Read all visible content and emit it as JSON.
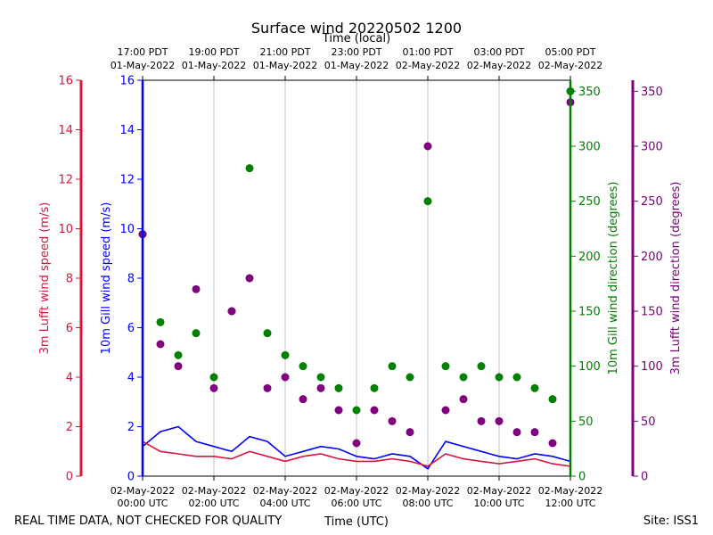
{
  "chart_data": {
    "type": "line",
    "title": "Surface wind 20220502 1200",
    "top_axis_label": "Time (local)",
    "xlabel": "Time (UTC)",
    "footer_left": "REAL TIME DATA, NOT CHECKED FOR QUALITY",
    "footer_right": "Site: ISS1",
    "x_range_hours": [
      0,
      12
    ],
    "x_ticks_utc": [
      {
        "h": 0,
        "line1": "02-May-2022",
        "line2": "00:00 UTC"
      },
      {
        "h": 2,
        "line1": "02-May-2022",
        "line2": "02:00 UTC"
      },
      {
        "h": 4,
        "line1": "02-May-2022",
        "line2": "04:00 UTC"
      },
      {
        "h": 6,
        "line1": "02-May-2022",
        "line2": "06:00 UTC"
      },
      {
        "h": 8,
        "line1": "02-May-2022",
        "line2": "08:00 UTC"
      },
      {
        "h": 10,
        "line1": "02-May-2022",
        "line2": "10:00 UTC"
      },
      {
        "h": 12,
        "line1": "02-May-2022",
        "line2": "12:00 UTC"
      }
    ],
    "x_ticks_local": [
      {
        "h": 0,
        "line1": "17:00 PDT",
        "line2": "01-May-2022"
      },
      {
        "h": 2,
        "line1": "19:00 PDT",
        "line2": "01-May-2022"
      },
      {
        "h": 4,
        "line1": "21:00 PDT",
        "line2": "01-May-2022"
      },
      {
        "h": 6,
        "line1": "23:00 PDT",
        "line2": "01-May-2022"
      },
      {
        "h": 8,
        "line1": "01:00 PDT",
        "line2": "02-May-2022"
      },
      {
        "h": 10,
        "line1": "03:00 PDT",
        "line2": "02-May-2022"
      },
      {
        "h": 12,
        "line1": "05:00 PDT",
        "line2": "02-May-2022"
      }
    ],
    "axes": {
      "lufft_speed": {
        "label": "3m Lufft wind speed (m/s)",
        "range": [
          0,
          16
        ],
        "ticks": [
          0,
          2,
          4,
          6,
          8,
          10,
          12,
          14,
          16
        ],
        "color": "#dc143c"
      },
      "gill_speed": {
        "label": "10m Gill wind speed (m/s)",
        "range": [
          0,
          16
        ],
        "ticks": [
          0,
          2,
          4,
          6,
          8,
          10,
          12,
          14,
          16
        ],
        "color": "#0000ff"
      },
      "gill_dir": {
        "label": "10m Gill wind direction (degrees)",
        "range": [
          0,
          360
        ],
        "ticks": [
          0,
          50,
          100,
          150,
          200,
          250,
          300,
          350
        ],
        "color": "#008000"
      },
      "lufft_dir": {
        "label": "3m Lufft wind direction (degrees)",
        "range": [
          0,
          360
        ],
        "ticks": [
          0,
          50,
          100,
          150,
          200,
          250,
          300,
          350
        ],
        "color": "#800080"
      }
    },
    "series": [
      {
        "name": "10m Gill wind speed",
        "axis": "gill_speed",
        "style": "line",
        "color": "#0000ff",
        "hours": [
          0,
          0.5,
          1,
          1.5,
          2,
          2.5,
          3,
          3.5,
          4,
          4.5,
          5,
          5.5,
          6,
          6.5,
          7,
          7.5,
          8,
          8.5,
          9,
          9.5,
          10,
          10.5,
          11,
          11.5,
          12
        ],
        "values": [
          1.2,
          1.8,
          2.0,
          1.4,
          1.2,
          1.0,
          1.6,
          1.4,
          0.8,
          1.0,
          1.2,
          1.1,
          0.8,
          0.7,
          0.9,
          0.8,
          0.3,
          1.4,
          1.2,
          1.0,
          0.8,
          0.7,
          0.9,
          0.8,
          0.6
        ]
      },
      {
        "name": "3m Lufft wind speed",
        "axis": "lufft_speed",
        "style": "line",
        "color": "#dc143c",
        "hours": [
          0,
          0.5,
          1,
          1.5,
          2,
          2.5,
          3,
          3.5,
          4,
          4.5,
          5,
          5.5,
          6,
          6.5,
          7,
          7.5,
          8,
          8.5,
          9,
          9.5,
          10,
          10.5,
          11,
          11.5,
          12
        ],
        "values": [
          1.4,
          1.0,
          0.9,
          0.8,
          0.8,
          0.7,
          1.0,
          0.8,
          0.6,
          0.8,
          0.9,
          0.7,
          0.6,
          0.6,
          0.7,
          0.6,
          0.4,
          0.9,
          0.7,
          0.6,
          0.5,
          0.6,
          0.7,
          0.5,
          0.4
        ]
      },
      {
        "name": "10m Gill wind direction",
        "axis": "gill_dir",
        "style": "scatter",
        "color": "#008000",
        "hours": [
          0,
          0.5,
          1,
          1.5,
          2,
          2.5,
          3,
          3.5,
          4,
          4.5,
          5,
          5.5,
          6,
          6.5,
          7,
          7.5,
          8,
          8.5,
          9,
          9.5,
          10,
          10.5,
          11,
          11.5,
          12
        ],
        "values": [
          220,
          140,
          110,
          130,
          90,
          150,
          280,
          130,
          110,
          100,
          90,
          80,
          60,
          80,
          100,
          90,
          250,
          100,
          90,
          100,
          90,
          90,
          80,
          70,
          350
        ]
      },
      {
        "name": "3m Lufft wind direction",
        "axis": "lufft_dir",
        "style": "scatter",
        "color": "#800080",
        "hours": [
          0,
          0.5,
          1,
          1.5,
          2,
          2.5,
          3,
          3.5,
          4,
          4.5,
          5,
          5.5,
          6,
          6.5,
          7,
          7.5,
          8,
          8.5,
          9,
          9.5,
          10,
          10.5,
          11,
          11.5,
          12
        ],
        "values": [
          220,
          120,
          100,
          170,
          80,
          150,
          180,
          80,
          90,
          70,
          80,
          60,
          30,
          60,
          50,
          40,
          300,
          60,
          70,
          50,
          50,
          40,
          40,
          30,
          340
        ]
      }
    ]
  }
}
